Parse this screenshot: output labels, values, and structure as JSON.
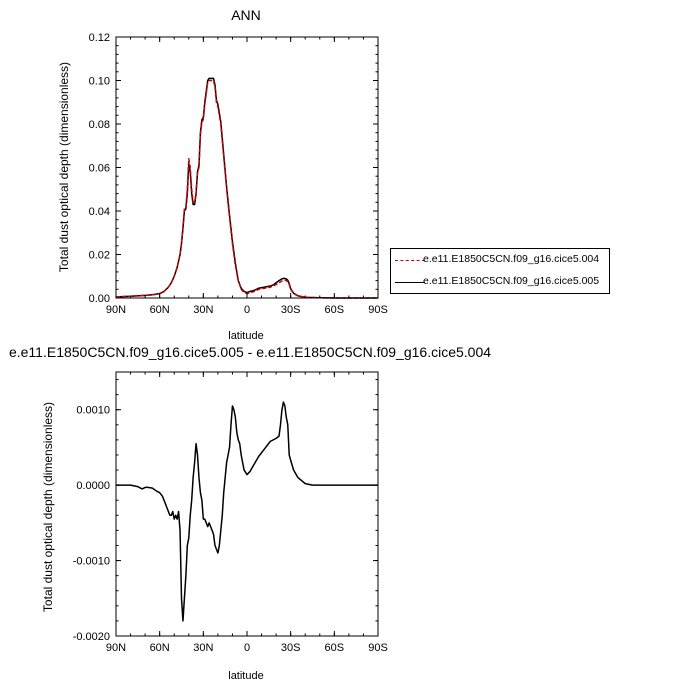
{
  "chart_data": [
    {
      "type": "line",
      "title": "ANN",
      "xlabel": "latitude",
      "ylabel": "Total dust optical depth (dimensionless)",
      "xlim": [
        90,
        -90
      ],
      "ylim": [
        0,
        0.12
      ],
      "x_tick_labels": [
        "90N",
        "60N",
        "30N",
        "0",
        "30S",
        "60S",
        "90S"
      ],
      "y_tick_labels": [
        "0.00",
        "0.02",
        "0.04",
        "0.06",
        "0.08",
        "0.10",
        "0.12"
      ],
      "legend_position": "right",
      "series": [
        {
          "name": "e.e11.E1850C5CN.f09_g16.cice5.004",
          "color": "#cc0000",
          "style": "dashed",
          "x": [
            90,
            80,
            70,
            65,
            60,
            57,
            54,
            52,
            50,
            48,
            46,
            45,
            44,
            43,
            42,
            41,
            40,
            39,
            38,
            37,
            36,
            35,
            34,
            33,
            32,
            31,
            30,
            29,
            28,
            27,
            26,
            25,
            24,
            23,
            22,
            21,
            20,
            18,
            16,
            14,
            12,
            10,
            8,
            6,
            4,
            2,
            0,
            -2,
            -5,
            -8,
            -12,
            -16,
            -18,
            -20,
            -22,
            -24,
            -25,
            -26,
            -27,
            -28,
            -29,
            -30,
            -32,
            -35,
            -40,
            -50,
            -60,
            -70,
            -80,
            -90
          ],
          "y": [
            0.0005,
            0.0008,
            0.0012,
            0.0015,
            0.002,
            0.003,
            0.005,
            0.007,
            0.01,
            0.014,
            0.02,
            0.025,
            0.033,
            0.041,
            0.042,
            0.05,
            0.064,
            0.06,
            0.05,
            0.044,
            0.044,
            0.048,
            0.058,
            0.06,
            0.075,
            0.081,
            0.082,
            0.089,
            0.094,
            0.099,
            0.1,
            0.1,
            0.1,
            0.1,
            0.097,
            0.09,
            0.088,
            0.08,
            0.065,
            0.05,
            0.037,
            0.025,
            0.015,
            0.008,
            0.004,
            0.0025,
            0.002,
            0.0025,
            0.003,
            0.004,
            0.0045,
            0.005,
            0.0055,
            0.0062,
            0.007,
            0.0078,
            0.008,
            0.0082,
            0.008,
            0.0075,
            0.0062,
            0.004,
            0.002,
            0.001,
            0.0003,
            0.0001,
            0.0,
            0.0,
            0.0,
            0.0
          ]
        },
        {
          "name": "e.e11.E1850C5CN.f09_g16.cice5.005",
          "color": "#000000",
          "style": "solid",
          "x": [
            90,
            80,
            70,
            65,
            60,
            57,
            54,
            52,
            50,
            48,
            46,
            45,
            44,
            43,
            42,
            41,
            40,
            39,
            38,
            37,
            36,
            35,
            34,
            33,
            32,
            31,
            30,
            29,
            28,
            27,
            26,
            25,
            24,
            23,
            22,
            21,
            20,
            18,
            16,
            14,
            12,
            10,
            8,
            6,
            4,
            2,
            0,
            -2,
            -5,
            -8,
            -12,
            -16,
            -18,
            -20,
            -22,
            -24,
            -25,
            -26,
            -27,
            -28,
            -29,
            -30,
            -32,
            -35,
            -40,
            -50,
            -60,
            -70,
            -80,
            -90
          ],
          "y": [
            0.0005,
            0.0008,
            0.0012,
            0.0015,
            0.002,
            0.003,
            0.005,
            0.007,
            0.01,
            0.014,
            0.02,
            0.025,
            0.032,
            0.04,
            0.041,
            0.048,
            0.062,
            0.058,
            0.048,
            0.043,
            0.043,
            0.048,
            0.058,
            0.061,
            0.076,
            0.082,
            0.083,
            0.09,
            0.095,
            0.1,
            0.101,
            0.101,
            0.101,
            0.101,
            0.098,
            0.091,
            0.089,
            0.081,
            0.066,
            0.051,
            0.038,
            0.026,
            0.016,
            0.008,
            0.0045,
            0.003,
            0.0025,
            0.003,
            0.0035,
            0.0045,
            0.005,
            0.0055,
            0.006,
            0.007,
            0.008,
            0.0088,
            0.009,
            0.009,
            0.0088,
            0.0082,
            0.0066,
            0.0043,
            0.0022,
            0.001,
            0.0003,
            0.0001,
            0.0,
            0.0,
            0.0,
            0.0
          ]
        }
      ]
    },
    {
      "type": "line",
      "title": "e.e11.E1850C5CN.f09_g16.cice5.005 - e.e11.E1850C5CN.f09_g16.cice5.004",
      "xlabel": "latitude",
      "ylabel": "Total dust optical depth (dimensionless)",
      "xlim": [
        90,
        -90
      ],
      "ylim": [
        -0.002,
        0.0015
      ],
      "x_tick_labels": [
        "90N",
        "60N",
        "30N",
        "0",
        "30S",
        "60S",
        "90S"
      ],
      "y_tick_labels": [
        "-0.0020",
        "-0.0010",
        "0.0000",
        "0.0010"
      ],
      "y_tick_values": [
        -0.002,
        -0.001,
        0.0,
        0.001
      ],
      "series": [
        {
          "color": "#000000",
          "style": "solid",
          "x": [
            90,
            80,
            75,
            72,
            70,
            68,
            65,
            62,
            60,
            58,
            56,
            55,
            53,
            52,
            51,
            50,
            49,
            48,
            47,
            46,
            45,
            44,
            43,
            42,
            41,
            40,
            39,
            38,
            37,
            36,
            35,
            34,
            33,
            32,
            31,
            30,
            29,
            28,
            27,
            26,
            25,
            24,
            23,
            22,
            21,
            20,
            19,
            18,
            17,
            16,
            15,
            14,
            13,
            12,
            11,
            10,
            9,
            8,
            7,
            6,
            5,
            4,
            3,
            2,
            0,
            -2,
            -5,
            -8,
            -12,
            -16,
            -18,
            -20,
            -22,
            -23,
            -24,
            -25,
            -26,
            -27,
            -28,
            -29,
            -30,
            -32,
            -35,
            -40,
            -45,
            -50,
            -60,
            -70,
            -80,
            -90
          ],
          "y": [
            0.0,
            0.0,
            -2e-05,
            -5e-05,
            -3e-05,
            -3e-05,
            -4e-05,
            -8e-05,
            -0.0001,
            -0.00015,
            -0.00025,
            -0.0003,
            -0.0004,
            -0.0004,
            -0.00035,
            -0.00045,
            -0.0004,
            -0.00045,
            -0.00035,
            -0.0006,
            -0.0015,
            -0.0018,
            -0.0015,
            -0.0012,
            -0.0008,
            -0.0007,
            -0.0004,
            -0.0002,
            0.0001,
            0.0003,
            0.00055,
            0.0004,
            0.0001,
            -0.0001,
            -0.0002,
            -0.00045,
            -0.00045,
            -0.0005,
            -0.00055,
            -0.0005,
            -0.00055,
            -0.0006,
            -0.00065,
            -0.0008,
            -0.00085,
            -0.0009,
            -0.0008,
            -0.0006,
            -0.0004,
            -0.0001,
            0.0001,
            0.0003,
            0.0004,
            0.0005,
            0.0008,
            0.00105,
            0.001,
            0.0009,
            0.0007,
            0.0006,
            0.00055,
            0.0004,
            0.0003,
            0.0002,
            0.00014,
            0.00018,
            0.00028,
            0.00038,
            0.00048,
            0.00058,
            0.0006,
            0.00062,
            0.00065,
            0.0008,
            0.001,
            0.0011,
            0.00105,
            0.0009,
            0.0008,
            0.0004,
            0.00033,
            0.0002,
            0.0001,
            2e-05,
            0.0,
            0.0,
            0.0,
            0.0,
            0.0,
            0.0
          ]
        }
      ]
    }
  ]
}
